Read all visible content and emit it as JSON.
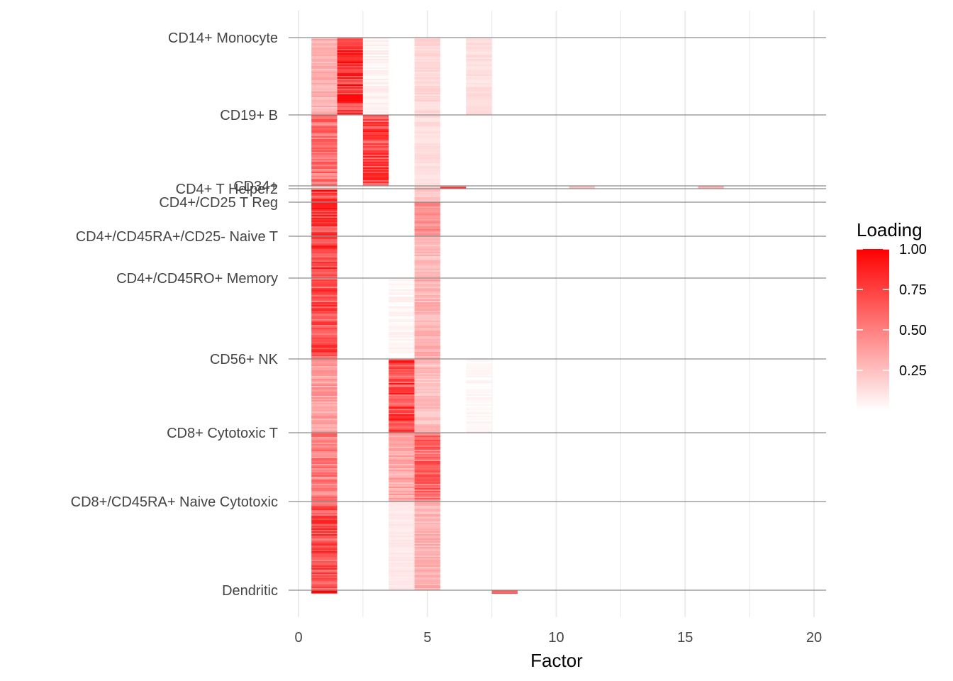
{
  "chart_data": {
    "type": "heatmap",
    "title": "",
    "xlabel": "Factor",
    "ylabel": "",
    "xlim": [
      0,
      20
    ],
    "xticks": [
      0,
      5,
      10,
      15,
      20
    ],
    "factors": [
      1,
      2,
      3,
      4,
      5,
      6,
      7,
      8,
      9,
      10,
      11,
      12,
      13,
      14,
      15,
      16,
      17,
      18,
      19,
      20
    ],
    "cell_type_labels": [
      "CD14+ Monocyte",
      "CD19+ B",
      "CD34+",
      "CD4+ T Helper2",
      "CD4+/CD25 T Reg",
      "CD4+/CD45RA+/CD25- Naive T",
      "CD4+/CD45RO+ Memory",
      "CD56+ NK",
      "CD8+ Cytotoxic T",
      "CD8+/CD45RA+ Naive Cytotoxic",
      "Dendritic"
    ],
    "group_loadings": {
      "CD14+ Monocyte": {
        "1": 0.35,
        "2": 0.92,
        "3": 0.06,
        "5": 0.18,
        "7": 0.15
      },
      "CD19+ B": {
        "1": 0.65,
        "3": 0.85,
        "5": 0.15
      },
      "CD34+": {
        "1": 0.3,
        "5": 0.2,
        "6": 0.85,
        "11": 0.3,
        "16": 0.3
      },
      "CD4+ T Helper2": {
        "1": 0.9,
        "5": 0.25
      },
      "CD4+/CD25 T Reg": {
        "1": 0.88,
        "5": 0.5
      },
      "CD4+/CD45RA+/CD25- Naive T": {
        "1": 0.9,
        "5": 0.3
      },
      "CD4+/CD45RO+ Memory": {
        "1": 0.8,
        "4": 0.05,
        "5": 0.35
      },
      "CD56+ NK": {
        "1": 0.45,
        "4": 0.85,
        "5": 0.3,
        "7": 0.04
      },
      "CD8+ Cytotoxic T": {
        "1": 0.6,
        "4": 0.4,
        "5": 0.7
      },
      "CD8+/CD45RA+ Naive Cytotoxic": {
        "1": 0.8,
        "4": 0.1,
        "5": 0.35
      },
      "Dendritic": {
        "1": 0.95,
        "8": 0.9
      }
    },
    "legend": {
      "title": "Loading",
      "ticks": [
        "1.00",
        "0.75",
        "0.50",
        "0.25"
      ],
      "tick_values": [
        1.0,
        0.75,
        0.5,
        0.25
      ],
      "range": [
        0,
        1
      ],
      "low_color": "#ffffff",
      "high_color": "#ff0000",
      "position": "right"
    },
    "grid": true
  }
}
